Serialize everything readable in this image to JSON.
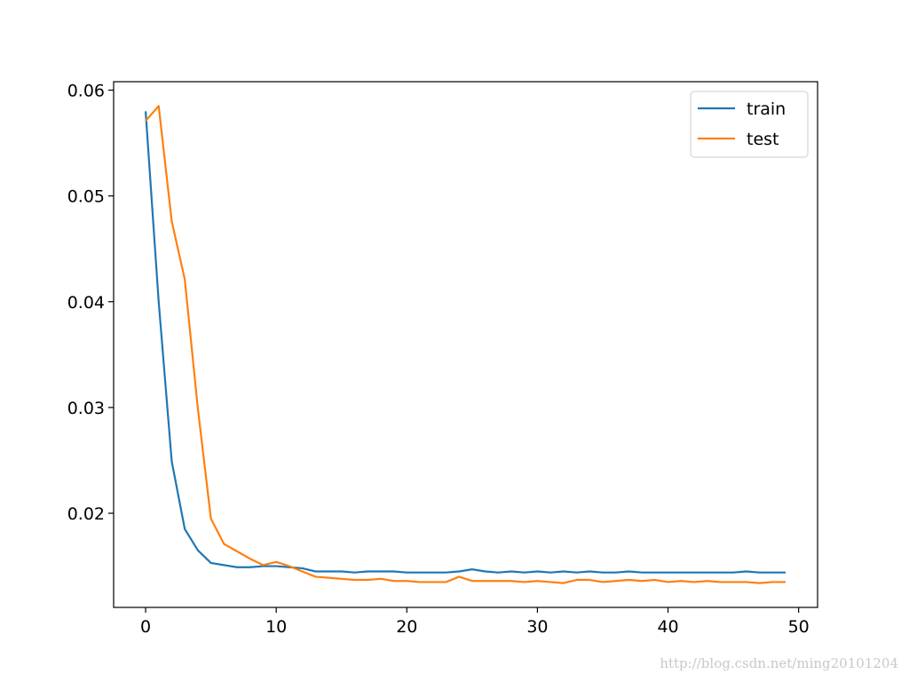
{
  "chart_data": {
    "type": "line",
    "x": [
      0,
      1,
      2,
      3,
      4,
      5,
      6,
      7,
      8,
      9,
      10,
      11,
      12,
      13,
      14,
      15,
      16,
      17,
      18,
      19,
      20,
      21,
      22,
      23,
      24,
      25,
      26,
      27,
      28,
      29,
      30,
      31,
      32,
      33,
      34,
      35,
      36,
      37,
      38,
      39,
      40,
      41,
      42,
      43,
      44,
      45,
      46,
      47,
      48,
      49
    ],
    "series": [
      {
        "name": "train",
        "color": "#1f77b4",
        "values": [
          0.058,
          0.04,
          0.0249,
          0.0185,
          0.0165,
          0.0153,
          0.0151,
          0.0149,
          0.0149,
          0.015,
          0.015,
          0.0149,
          0.0148,
          0.0145,
          0.0145,
          0.0145,
          0.0144,
          0.0145,
          0.0145,
          0.0145,
          0.0144,
          0.0144,
          0.0144,
          0.0144,
          0.0145,
          0.0147,
          0.0145,
          0.0144,
          0.0145,
          0.0144,
          0.0145,
          0.0144,
          0.0145,
          0.0144,
          0.0145,
          0.0144,
          0.0144,
          0.0145,
          0.0144,
          0.0144,
          0.0144,
          0.0144,
          0.0144,
          0.0144,
          0.0144,
          0.0144,
          0.0145,
          0.0144,
          0.0144,
          0.0144
        ]
      },
      {
        "name": "test",
        "color": "#ff7f0e",
        "values": [
          0.0571,
          0.0585,
          0.0476,
          0.0421,
          0.0299,
          0.0195,
          0.0171,
          0.0164,
          0.0157,
          0.0151,
          0.0154,
          0.015,
          0.0145,
          0.014,
          0.0139,
          0.0138,
          0.0137,
          0.0137,
          0.0138,
          0.0136,
          0.0136,
          0.0135,
          0.0135,
          0.0135,
          0.014,
          0.0136,
          0.0136,
          0.0136,
          0.0136,
          0.0135,
          0.0136,
          0.0135,
          0.0134,
          0.0137,
          0.0137,
          0.0135,
          0.0136,
          0.0137,
          0.0136,
          0.0137,
          0.0135,
          0.0136,
          0.0135,
          0.0136,
          0.0135,
          0.0135,
          0.0135,
          0.0134,
          0.0135,
          0.0135
        ]
      }
    ],
    "xlim": [
      -2.45,
      51.45
    ],
    "xticks": [
      0,
      10,
      20,
      30,
      40,
      50
    ],
    "ylim": [
      0.0111,
      0.0608
    ],
    "yticks": [
      0.02,
      0.03,
      0.04,
      0.05,
      0.06
    ],
    "legend": "upper right",
    "watermark": "http://blog.csdn.net/ming20101204"
  }
}
